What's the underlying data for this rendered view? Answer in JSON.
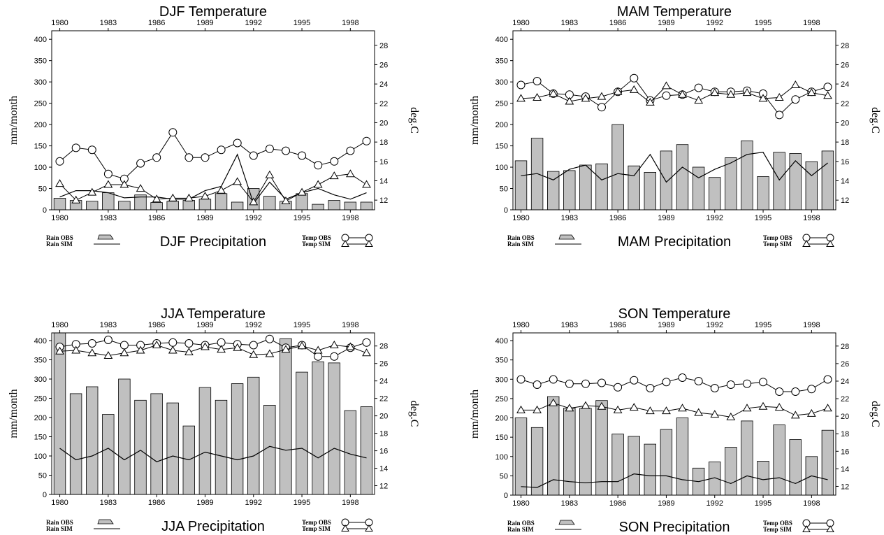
{
  "years": [
    1980,
    1981,
    1982,
    1983,
    1984,
    1985,
    1986,
    1987,
    1988,
    1989,
    1990,
    1991,
    1992,
    1993,
    1994,
    1995,
    1996,
    1997,
    1998,
    1999
  ],
  "tick_years": [
    "1980",
    "1983",
    "1986",
    "1989",
    "1992",
    "1995",
    "1998"
  ],
  "rain_ticks": [
    "0",
    "50",
    "100",
    "150",
    "200",
    "250",
    "300",
    "350",
    "400"
  ],
  "temp_ticks": [
    "12",
    "14",
    "16",
    "18",
    "20",
    "22",
    "24",
    "26",
    "28"
  ],
  "colors": {
    "bar": "#c0c0c0",
    "line": "#000000"
  },
  "chart_data": [
    {
      "type": "bar",
      "title": "DJF Temperature",
      "xlabel": "DJF Precipitation",
      "ylabel_left": "mm/month",
      "ylabel_right": "deg.C",
      "ylim_left": [
        0,
        420
      ],
      "ylim_right": [
        11,
        29.5
      ],
      "legend": {
        "rain_obs": "Rain OBS",
        "rain_sim": "Rain SIM",
        "temp_obs": "Temp OBS",
        "temp_sim": "Temp SIM"
      },
      "series": [
        {
          "name": "Rain OBS",
          "kind": "bar",
          "values": [
            27,
            22,
            20,
            40,
            20,
            35,
            17,
            20,
            22,
            25,
            38,
            18,
            50,
            32,
            20,
            38,
            13,
            22,
            18,
            18
          ]
        },
        {
          "name": "Rain SIM",
          "kind": "line",
          "values": [
            30,
            45,
            45,
            40,
            28,
            30,
            30,
            25,
            25,
            45,
            55,
            130,
            15,
            65,
            25,
            40,
            50,
            35,
            25,
            40
          ]
        },
        {
          "name": "Temp OBS",
          "kind": "line",
          "values": [
            16,
            17.4,
            17.2,
            14.7,
            14.2,
            15.8,
            16.4,
            19,
            16.4,
            16.4,
            17.2,
            17.9,
            16.6,
            17.3,
            17.1,
            16.6,
            15.6,
            16,
            17.1,
            18.1
          ]
        },
        {
          "name": "Temp SIM",
          "kind": "line",
          "values": [
            13.7,
            12,
            12.8,
            13.6,
            13.6,
            13.2,
            12.1,
            12.2,
            12.2,
            12.4,
            13,
            13.9,
            11.8,
            14.6,
            11.9,
            12.8,
            13.6,
            14.5,
            14.7,
            13.6
          ]
        }
      ]
    },
    {
      "type": "bar",
      "title": "MAM Temperature",
      "xlabel": "MAM Precipitation",
      "ylabel_left": "mm/month",
      "ylabel_right": "deg.C",
      "ylim_left": [
        0,
        420
      ],
      "ylim_right": [
        11,
        29.5
      ],
      "legend": {
        "rain_obs": "Rain OBS",
        "rain_sim": "Rain SIM",
        "temp_obs": "Temp OBS",
        "temp_sim": "Temp SIM"
      },
      "series": [
        {
          "name": "Rain OBS",
          "kind": "bar",
          "values": [
            115,
            168,
            90,
            92,
            105,
            108,
            200,
            103,
            88,
            138,
            153,
            100,
            76,
            122,
            162,
            78,
            135,
            132,
            113,
            138
          ]
        },
        {
          "name": "Rain SIM",
          "kind": "line",
          "values": [
            80,
            85,
            70,
            95,
            105,
            70,
            85,
            80,
            130,
            65,
            100,
            75,
            95,
            110,
            130,
            135,
            70,
            115,
            80,
            110
          ]
        },
        {
          "name": "Temp OBS",
          "kind": "line",
          "values": [
            23.9,
            24.3,
            23,
            22.9,
            22.7,
            21.6,
            23.2,
            24.6,
            22.3,
            22.8,
            22.9,
            23.6,
            23.2,
            23.2,
            23.3,
            23,
            20.8,
            22.4,
            23.2,
            23.7
          ]
        },
        {
          "name": "Temp SIM",
          "kind": "line",
          "values": [
            22.5,
            22.6,
            23,
            22.2,
            22.5,
            22.7,
            23.2,
            23.4,
            22.1,
            23.8,
            22.9,
            22.3,
            23.1,
            22.9,
            23.1,
            22.5,
            22.6,
            23.9,
            23.1,
            22.8
          ]
        }
      ]
    },
    {
      "type": "bar",
      "title": "JJA Temperature",
      "xlabel": "JJA Precipitation",
      "ylabel_left": "mm/month",
      "ylabel_right": "deg.C",
      "ylim_left": [
        0,
        420
      ],
      "ylim_right": [
        11,
        29.5
      ],
      "legend": {
        "rain_obs": "Rain OBS",
        "rain_sim": "Rain SIM",
        "temp_obs": "Temp OBS",
        "temp_sim": "Temp SIM"
      },
      "series": [
        {
          "name": "Rain OBS",
          "kind": "bar",
          "values": [
            420,
            262,
            280,
            208,
            300,
            245,
            262,
            238,
            178,
            278,
            245,
            288,
            305,
            232,
            405,
            318,
            345,
            342,
            218,
            228
          ]
        },
        {
          "name": "Rain SIM",
          "kind": "line",
          "values": [
            120,
            90,
            100,
            120,
            90,
            115,
            85,
            100,
            90,
            110,
            100,
            90,
            100,
            125,
            115,
            120,
            95,
            120,
            105,
            95
          ]
        },
        {
          "name": "Temp OBS",
          "kind": "line",
          "values": [
            27.9,
            28.2,
            28.3,
            28.7,
            28.1,
            28.1,
            28.3,
            28.4,
            28.3,
            28.1,
            28.4,
            28.2,
            28.1,
            28.8,
            27.8,
            28.1,
            26.8,
            26.8,
            27.8,
            28.4
          ]
        },
        {
          "name": "Temp SIM",
          "kind": "line",
          "values": [
            27.4,
            27.5,
            27.2,
            26.9,
            27.2,
            27.5,
            28.1,
            27.5,
            27.3,
            27.9,
            27.6,
            27.8,
            27,
            27.1,
            27.6,
            28,
            27.5,
            28.1,
            27.9,
            27.2
          ]
        }
      ]
    },
    {
      "type": "bar",
      "title": "SON Temperature",
      "xlabel": "SON Precipitation",
      "ylabel_left": "mm/month",
      "ylabel_right": "deg.C",
      "ylim_left": [
        0,
        420
      ],
      "ylim_right": [
        11,
        29.5
      ],
      "legend": {
        "rain_obs": "Rain OBS",
        "rain_sim": "Rain SIM",
        "temp_obs": "Temp OBS",
        "temp_sim": "Temp SIM"
      },
      "series": [
        {
          "name": "Rain OBS",
          "kind": "bar",
          "values": [
            200,
            175,
            255,
            225,
            225,
            245,
            158,
            152,
            132,
            170,
            200,
            70,
            86,
            124,
            192,
            88,
            182,
            144,
            100,
            168
          ]
        },
        {
          "name": "Rain SIM",
          "kind": "line",
          "values": [
            22,
            20,
            40,
            35,
            32,
            35,
            35,
            55,
            50,
            50,
            40,
            35,
            45,
            30,
            50,
            40,
            45,
            30,
            50,
            40
          ]
        },
        {
          "name": "Temp OBS",
          "kind": "line",
          "values": [
            24.2,
            23.6,
            24.2,
            23.7,
            23.7,
            23.8,
            23.3,
            24.1,
            23.2,
            23.9,
            24.4,
            24,
            23.2,
            23.6,
            23.7,
            23.9,
            22.8,
            22.8,
            23.1,
            24.2
          ]
        },
        {
          "name": "Temp SIM",
          "kind": "line",
          "values": [
            20.7,
            20.7,
            21.5,
            20.9,
            21.2,
            21.1,
            20.7,
            21,
            20.6,
            20.6,
            20.9,
            20.4,
            20.2,
            19.9,
            20.9,
            21.1,
            21,
            20.1,
            20.3,
            20.9
          ]
        }
      ]
    }
  ]
}
